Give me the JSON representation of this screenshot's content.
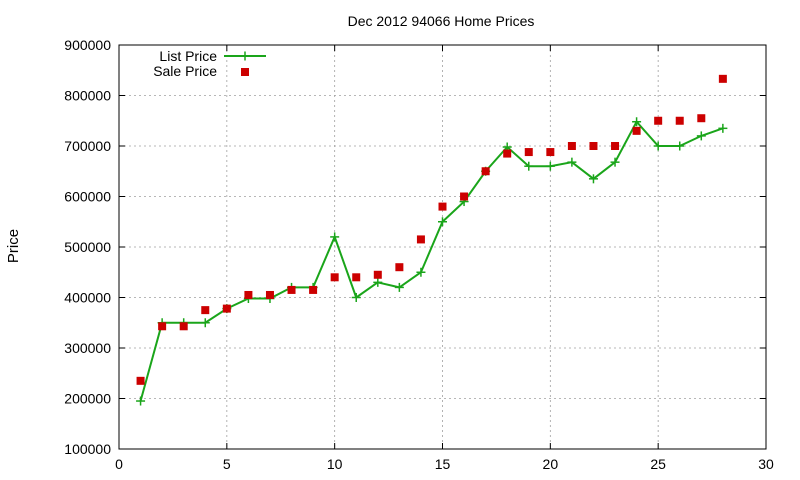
{
  "chart_data": {
    "type": "line",
    "title": "Dec 2012 94066 Home Prices",
    "xlabel": "",
    "ylabel": "Price",
    "xlim": [
      0,
      30
    ],
    "ylim": [
      100000,
      900000
    ],
    "xticks": [
      0,
      5,
      10,
      15,
      20,
      25,
      30
    ],
    "yticks": [
      100000,
      200000,
      300000,
      400000,
      500000,
      600000,
      700000,
      800000,
      900000
    ],
    "grid": true,
    "legend_position": "top-left",
    "series": [
      {
        "name": "List Price",
        "style": "line-plus",
        "color": "#1aa51a",
        "x": [
          1,
          2,
          3,
          4,
          5,
          6,
          7,
          8,
          9,
          10,
          11,
          12,
          13,
          14,
          15,
          16,
          17,
          18,
          19,
          20,
          21,
          22,
          23,
          24,
          25,
          26,
          27,
          28
        ],
        "values": [
          195000,
          350000,
          350000,
          350000,
          378000,
          398000,
          398000,
          420000,
          420000,
          520000,
          400000,
          430000,
          420000,
          450000,
          550000,
          590000,
          650000,
          698000,
          660000,
          660000,
          668000,
          635000,
          668000,
          748000,
          700000,
          700000,
          720000,
          735000
        ]
      },
      {
        "name": "Sale Price",
        "style": "square",
        "color": "#cc0000",
        "x": [
          1,
          2,
          3,
          4,
          5,
          6,
          7,
          8,
          9,
          10,
          11,
          12,
          13,
          14,
          15,
          16,
          17,
          18,
          19,
          20,
          21,
          22,
          23,
          24,
          25,
          26,
          27,
          28
        ],
        "values": [
          235000,
          343000,
          343000,
          375000,
          378000,
          405000,
          405000,
          415000,
          415000,
          440000,
          440000,
          445000,
          460000,
          515000,
          580000,
          600000,
          650000,
          685000,
          688000,
          688000,
          700000,
          700000,
          700000,
          730000,
          750000,
          750000,
          755000,
          833000
        ]
      }
    ]
  }
}
